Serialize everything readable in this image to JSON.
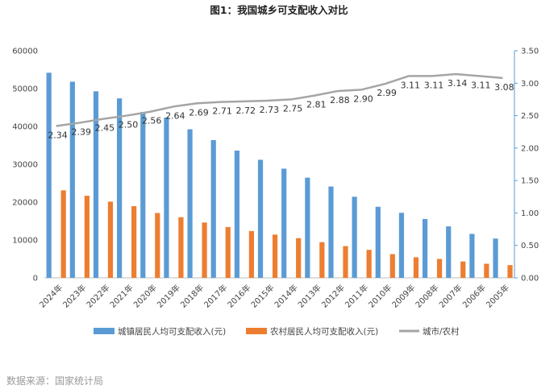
{
  "chart_data": {
    "type": "bar",
    "title": "图1：我国城乡可支配收入对比",
    "categories": [
      "2024年",
      "2023年",
      "2022年",
      "2021年",
      "2020年",
      "2019年",
      "2018年",
      "2017年",
      "2016年",
      "2015年",
      "2014年",
      "2013年",
      "2012年",
      "2011年",
      "2010年",
      "2009年",
      "2008年",
      "2007年",
      "2006年",
      "2005年"
    ],
    "series": [
      {
        "name": "城镇居民人均可支配收入(元)",
        "type": "bar",
        "axis": "left",
        "color": "#5B9BD5",
        "values": [
          54188,
          51821,
          49283,
          47412,
          43834,
          42359,
          39251,
          36396,
          33616,
          31195,
          28844,
          26467,
          24127,
          21427,
          18779,
          17175,
          15549,
          13603,
          11621,
          10382
        ]
      },
      {
        "name": "农村居民人均可支配收入(元)",
        "type": "bar",
        "axis": "left",
        "color": "#ED7D31",
        "values": [
          23119,
          21691,
          20133,
          18931,
          17131,
          16021,
          14617,
          13432,
          12363,
          11422,
          10489,
          9430,
          8389,
          7394,
          6272,
          5435,
          4999,
          4327,
          3731,
          3370
        ]
      },
      {
        "name": "城市/农村",
        "type": "line",
        "axis": "right",
        "color": "#A5A5A5",
        "values": [
          2.34,
          2.39,
          2.45,
          2.5,
          2.56,
          2.64,
          2.69,
          2.71,
          2.72,
          2.73,
          2.75,
          2.81,
          2.88,
          2.9,
          2.99,
          3.11,
          3.11,
          3.14,
          3.11,
          3.08
        ]
      }
    ],
    "line_labels": [
      "2.34",
      "2.39",
      "2.45",
      "2.50",
      "2.56",
      "2.64",
      "2.69",
      "2.71",
      "2.72",
      "2.73",
      "2.75",
      "2.81",
      "2.88",
      "2.90",
      "2.99",
      "3.11",
      "3.11",
      "3.14",
      "3.11",
      "3.08"
    ],
    "y_left": {
      "min": 0,
      "max": 60000,
      "ticks": [
        "0",
        "10000",
        "20000",
        "30000",
        "40000",
        "50000",
        "60000"
      ]
    },
    "y_right": {
      "min": 0,
      "max": 3.5,
      "ticks": [
        "0.00",
        "0.50",
        "1.00",
        "1.50",
        "2.00",
        "2.50",
        "3.00",
        "3.50"
      ]
    },
    "grid": false,
    "legend_position": "bottom",
    "source": "数据来源：国家统计局"
  }
}
